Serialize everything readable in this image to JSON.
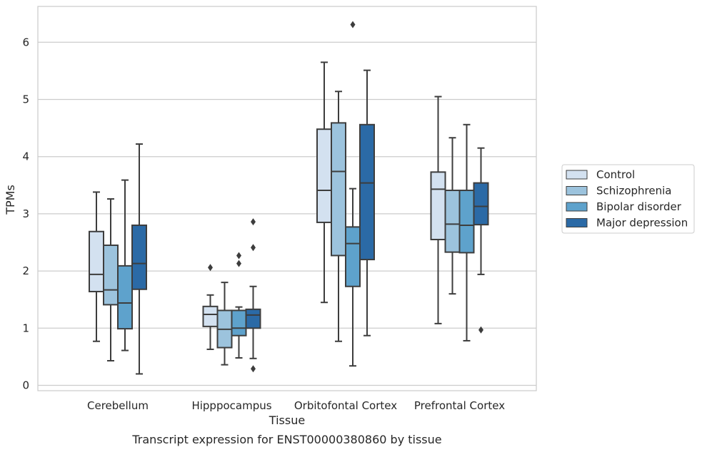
{
  "chart_data": {
    "type": "box",
    "ylabel": "TPMs",
    "xlabel": "Tissue",
    "caption": "Transcript expression for ENST00000380860 by tissue",
    "ylim": [
      -0.1,
      6.6
    ],
    "yticks": [
      0,
      1,
      2,
      3,
      4,
      5,
      6
    ],
    "grid": "horizontal",
    "legend_position": "right",
    "categories": [
      "Cerebellum",
      "Hipppocampus",
      "Orbitofontal Cortex",
      "Prefrontal Cortex"
    ],
    "series": [
      {
        "name": "Control",
        "color": "#d3e1f0",
        "boxes": [
          {
            "whislo": 0.77,
            "q1": 1.64,
            "med": 1.94,
            "q3": 2.69,
            "whishi": 3.38,
            "fliers": []
          },
          {
            "whislo": 0.63,
            "q1": 1.03,
            "med": 1.24,
            "q3": 1.38,
            "whishi": 1.58,
            "fliers": [
              2.06
            ]
          },
          {
            "whislo": 1.45,
            "q1": 2.85,
            "med": 3.41,
            "q3": 4.48,
            "whishi": 5.65,
            "fliers": []
          },
          {
            "whislo": 1.08,
            "q1": 2.55,
            "med": 3.43,
            "q3": 3.73,
            "whishi": 5.05,
            "fliers": []
          }
        ]
      },
      {
        "name": "Schizophrenia",
        "color": "#9cc3dd",
        "boxes": [
          {
            "whislo": 0.43,
            "q1": 1.41,
            "med": 1.67,
            "q3": 2.45,
            "whishi": 3.26,
            "fliers": []
          },
          {
            "whislo": 0.36,
            "q1": 0.66,
            "med": 0.98,
            "q3": 1.31,
            "whishi": 1.8,
            "fliers": []
          },
          {
            "whislo": 0.77,
            "q1": 2.27,
            "med": 3.74,
            "q3": 4.59,
            "whishi": 5.14,
            "fliers": []
          },
          {
            "whislo": 1.6,
            "q1": 2.33,
            "med": 2.82,
            "q3": 3.41,
            "whishi": 4.33,
            "fliers": []
          }
        ]
      },
      {
        "name": "Bipolar disorder",
        "color": "#5ea2cc",
        "boxes": [
          {
            "whislo": 0.61,
            "q1": 0.99,
            "med": 1.44,
            "q3": 2.09,
            "whishi": 3.59,
            "fliers": []
          },
          {
            "whislo": 0.48,
            "q1": 0.87,
            "med": 1.0,
            "q3": 1.31,
            "whishi": 1.37,
            "fliers": [
              2.13,
              2.27
            ]
          },
          {
            "whislo": 0.34,
            "q1": 1.73,
            "med": 2.48,
            "q3": 2.77,
            "whishi": 3.44,
            "fliers": [
              6.31
            ]
          },
          {
            "whislo": 0.78,
            "q1": 2.32,
            "med": 2.8,
            "q3": 3.41,
            "whishi": 4.56,
            "fliers": []
          }
        ]
      },
      {
        "name": "Major depression",
        "color": "#2b6aa6",
        "boxes": [
          {
            "whislo": 0.2,
            "q1": 1.68,
            "med": 2.13,
            "q3": 2.8,
            "whishi": 4.22,
            "fliers": []
          },
          {
            "whislo": 0.47,
            "q1": 1.0,
            "med": 1.23,
            "q3": 1.33,
            "whishi": 1.73,
            "fliers": [
              0.29,
              2.41,
              2.86
            ]
          },
          {
            "whislo": 0.87,
            "q1": 2.2,
            "med": 3.54,
            "q3": 4.56,
            "whishi": 5.51,
            "fliers": []
          },
          {
            "whislo": 1.94,
            "q1": 2.81,
            "med": 3.13,
            "q3": 3.54,
            "whishi": 4.15,
            "fliers": [
              0.97
            ]
          }
        ]
      }
    ]
  }
}
